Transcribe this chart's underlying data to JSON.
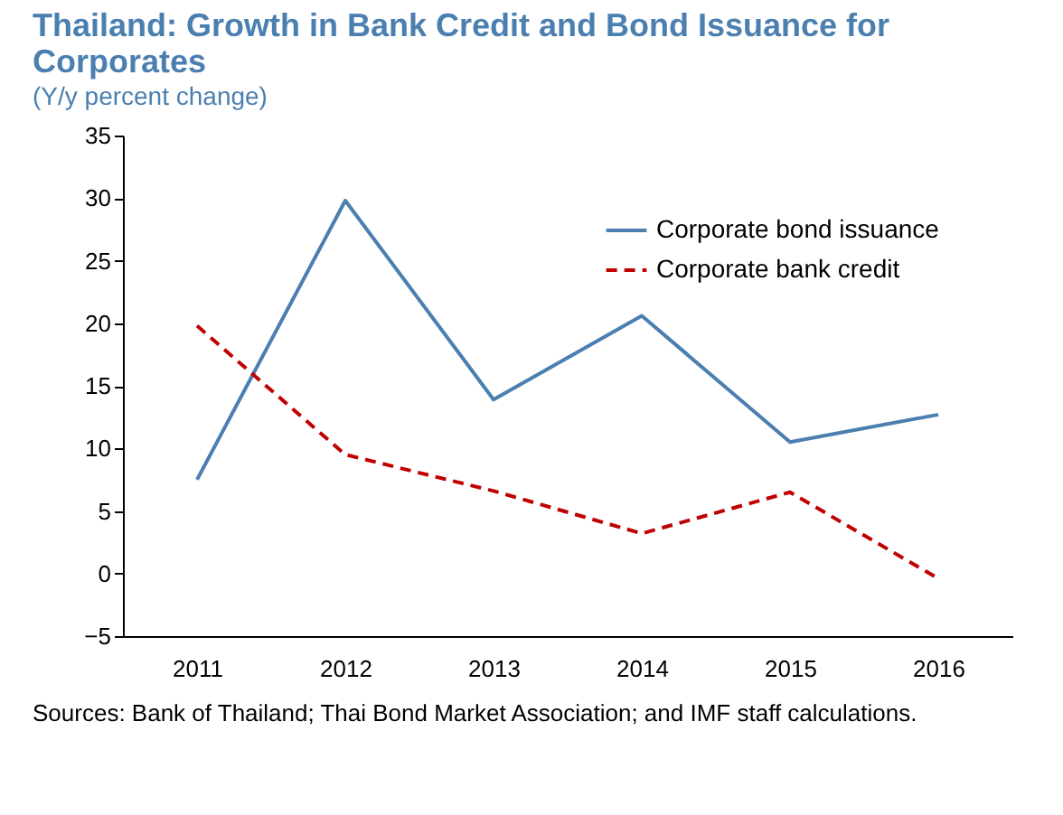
{
  "chart_data": {
    "type": "line",
    "title": "Thailand: Growth in Bank Credit and Bond Issuance for Corporates",
    "subtitle": "(Y/y percent change)",
    "categories": [
      "2011",
      "2012",
      "2013",
      "2014",
      "2015",
      "2016"
    ],
    "series": [
      {
        "name": "Corporate bond issuance",
        "color": "#4a7fb0",
        "line_style": "solid",
        "values": [
          7.5,
          29.8,
          13.9,
          20.6,
          10.5,
          12.7
        ]
      },
      {
        "name": "Corporate bank credit",
        "color": "#c00000",
        "line_style": "dashed",
        "values": [
          19.8,
          9.5,
          6.6,
          3.2,
          6.5,
          -0.4
        ]
      }
    ],
    "ylim": [
      -5,
      35
    ],
    "yticks": [
      -5,
      0,
      5,
      10,
      15,
      20,
      25,
      30,
      35
    ],
    "grid": false,
    "legend": "top right",
    "marker": "none",
    "annotations": [
      "Sources: Bank of Thailand; Thai Bond Market Association; and IMF staff calculations."
    ]
  }
}
